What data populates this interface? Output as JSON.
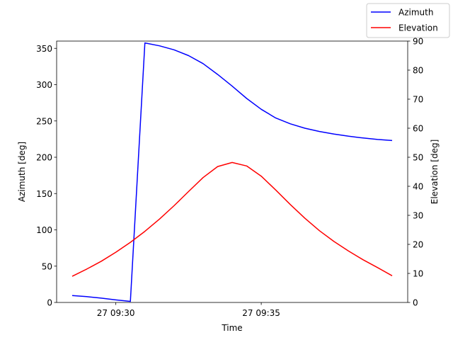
{
  "chart_data": {
    "type": "line",
    "xlabel": "Time",
    "x_axis": {
      "unit": "minutes after 27 09:28",
      "range_min": [
        -0.68,
        24.25
      ],
      "ticks": [
        {
          "value": 2,
          "label": "27 09:30"
        },
        {
          "value": 7,
          "label": "27 09:35"
        }
      ]
    },
    "left_axis": {
      "label": "Azimuth [deg]",
      "range": [
        0,
        360
      ],
      "ticks": [
        0,
        50,
        100,
        150,
        200,
        250,
        300,
        350
      ]
    },
    "right_axis": {
      "label": "Elevation [deg]",
      "range": [
        0,
        90
      ],
      "ticks": [
        0,
        10,
        20,
        30,
        40,
        50,
        60,
        70,
        80,
        90
      ]
    },
    "legend": {
      "position": "top-right"
    },
    "series": [
      {
        "name": "Azimuth",
        "color": "#0000ff",
        "axis": "left",
        "points": [
          [
            0.5,
            9.5
          ],
          [
            1.0,
            8.0
          ],
          [
            1.5,
            6.0
          ],
          [
            2.0,
            3.5
          ],
          [
            2.5,
            1.5
          ],
          [
            3.0,
            357.5
          ],
          [
            3.5,
            353.5
          ],
          [
            4.0,
            348
          ],
          [
            4.5,
            340
          ],
          [
            5.0,
            329
          ],
          [
            5.5,
            314
          ],
          [
            6.0,
            298
          ],
          [
            6.5,
            281
          ],
          [
            7.0,
            266
          ],
          [
            7.5,
            254
          ],
          [
            8.0,
            246
          ],
          [
            8.5,
            240
          ],
          [
            9.0,
            235.5
          ],
          [
            9.5,
            232
          ],
          [
            10.0,
            229
          ],
          [
            10.5,
            226.5
          ],
          [
            11.0,
            224.5
          ],
          [
            11.5,
            223
          ]
        ]
      },
      {
        "name": "Elevation",
        "color": "#ff0000",
        "axis": "right",
        "points": [
          [
            0.5,
            9.0
          ],
          [
            1.0,
            11.5
          ],
          [
            1.5,
            14.2
          ],
          [
            2.0,
            17.3
          ],
          [
            2.5,
            20.7
          ],
          [
            3.0,
            24.5
          ],
          [
            3.5,
            28.7
          ],
          [
            4.0,
            33.3
          ],
          [
            4.5,
            38.2
          ],
          [
            5.0,
            43.0
          ],
          [
            5.5,
            46.8
          ],
          [
            6.0,
            48.2
          ],
          [
            6.5,
            47.0
          ],
          [
            7.0,
            43.5
          ],
          [
            7.5,
            38.7
          ],
          [
            8.0,
            33.7
          ],
          [
            8.5,
            29.0
          ],
          [
            9.0,
            24.7
          ],
          [
            9.5,
            21.0
          ],
          [
            10.0,
            17.7
          ],
          [
            10.5,
            14.7
          ],
          [
            11.0,
            12.0
          ],
          [
            11.5,
            9.2
          ]
        ]
      }
    ]
  }
}
